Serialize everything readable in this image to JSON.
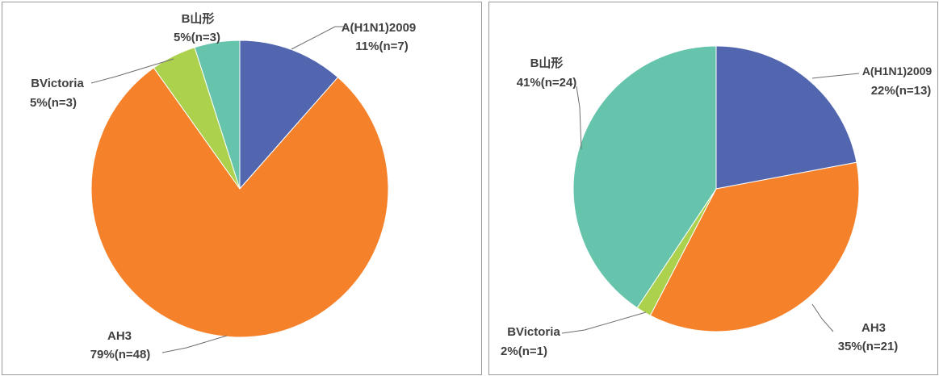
{
  "colors": {
    "A(H1N1)2009": "#5266b0",
    "AH3": "#f5812b",
    "BVictoria": "#acd24d",
    "B山形": "#65c4ab"
  },
  "chart_data": [
    {
      "type": "pie",
      "title": "",
      "start_angle_deg": 0,
      "direction": "clockwise",
      "slices": [
        {
          "name": "A(H1N1)2009",
          "value": 7,
          "percent_label": "11%(n=7)"
        },
        {
          "name": "AH3",
          "value": 48,
          "percent_label": "79%(n=48)"
        },
        {
          "name": "BVictoria",
          "value": 3,
          "percent_label": "5%(n=3)"
        },
        {
          "name": "B山形",
          "value": 3,
          "percent_label": "5%(n=3)"
        }
      ]
    },
    {
      "type": "pie",
      "title": "",
      "start_angle_deg": 0,
      "direction": "clockwise",
      "slices": [
        {
          "name": "A(H1N1)2009",
          "value": 13,
          "percent_label": "22%(n=13)"
        },
        {
          "name": "AH3",
          "value": 21,
          "percent_label": "35%(n=21)"
        },
        {
          "name": "BVictoria",
          "value": 1,
          "percent_label": "2%(n=1)"
        },
        {
          "name": "B山形",
          "value": 24,
          "percent_label": "41%(n=24)"
        }
      ]
    }
  ]
}
